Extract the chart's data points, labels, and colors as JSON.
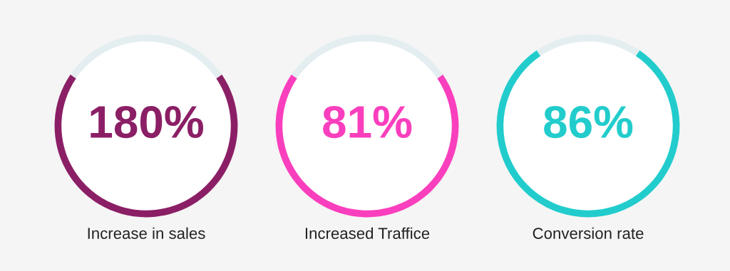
{
  "chart_data": [
    {
      "type": "donut",
      "categories": [
        null,
        null
      ],
      "values": [
        69,
        31
      ],
      "colors": [
        "#8b1f66",
        "#e4eef0"
      ],
      "annotations": [
        "180%"
      ],
      "xlabel": "Increase in sales"
    },
    {
      "type": "donut",
      "categories": [
        null,
        null
      ],
      "values": [
        69,
        31
      ],
      "colors": [
        "#f93fbd",
        "#e4eef0"
      ],
      "annotations": [
        "81%"
      ],
      "xlabel": "Increased Traffice"
    },
    {
      "type": "donut",
      "categories": [
        null,
        null
      ],
      "values": [
        81,
        19
      ],
      "colors": [
        "#22cccc",
        "#e4eef0"
      ],
      "annotations": [
        "86%"
      ],
      "xlabel": "Conversion rate"
    }
  ]
}
